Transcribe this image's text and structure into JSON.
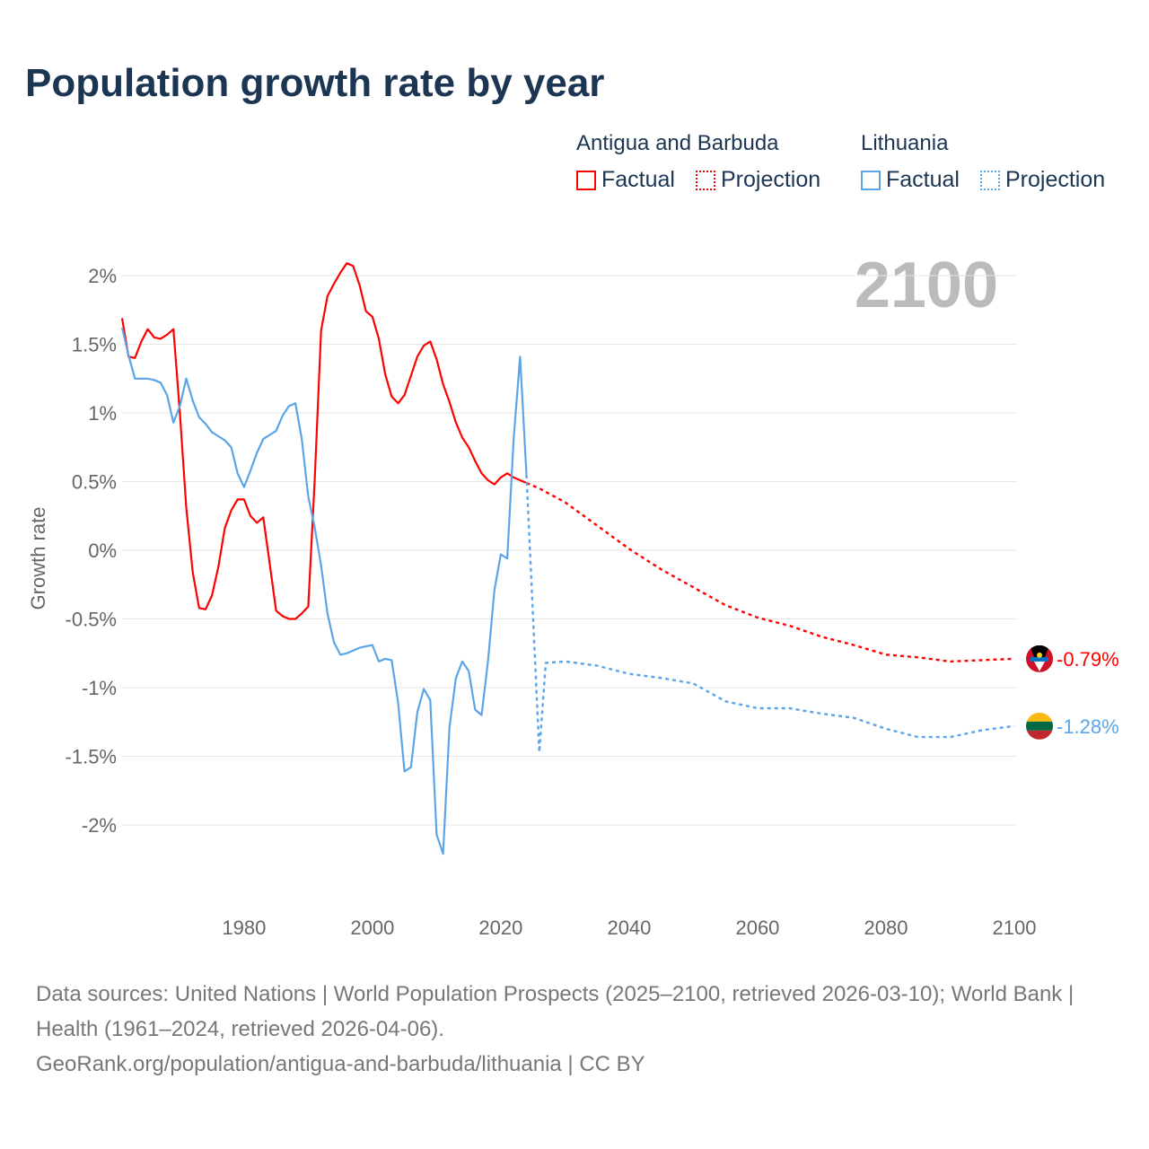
{
  "title": "Population growth rate by year",
  "legend": {
    "groups": [
      {
        "name": "Antigua and Barbuda",
        "color": "#ff0000",
        "factual": "Factual",
        "projection": "Projection"
      },
      {
        "name": "Lithuania",
        "color": "#5ba4e8",
        "factual": "Factual",
        "projection": "Projection"
      }
    ]
  },
  "year_label": "2100",
  "footer": {
    "sources": "Data sources: United Nations | World Population Prospects (2025–2100, retrieved 2026-03-10); World Bank | Health (1961–2024, retrieved 2026-04-06).",
    "credit": "GeoRank.org/population/antigua-and-barbuda/lithuania | CC BY"
  },
  "chart_data": {
    "type": "line",
    "title": "Population growth rate by year",
    "xlabel": "",
    "ylabel": "Growth rate",
    "xlim": [
      1961,
      2100
    ],
    "ylim": [
      -2.5,
      2.2
    ],
    "x_ticks": [
      1980,
      2000,
      2020,
      2040,
      2060,
      2080,
      2100
    ],
    "y_ticks": [
      2,
      1.5,
      1,
      0.5,
      0,
      -0.5,
      -1,
      -1.5,
      -2
    ],
    "y_tick_labels": [
      "2%",
      "1.5%",
      "1%",
      "0.5%",
      "0%",
      "-0.5%",
      "-1%",
      "-1.5%",
      "-2%"
    ],
    "series": [
      {
        "name": "Antigua and Barbuda",
        "color": "#ff0000",
        "end_label": "-0.79%",
        "factual_start": 1961,
        "factual": [
          1.69,
          1.41,
          1.4,
          1.52,
          1.61,
          1.55,
          1.54,
          1.57,
          1.61,
          1.0,
          0.31,
          -0.16,
          -0.42,
          -0.43,
          -0.33,
          -0.12,
          0.16,
          0.29,
          0.37,
          0.37,
          0.25,
          0.2,
          0.24,
          -0.1,
          -0.44,
          -0.48,
          -0.5,
          -0.5,
          -0.46,
          -0.41,
          0.5,
          1.6,
          1.85,
          1.94,
          2.02,
          2.09,
          2.07,
          1.93,
          1.74,
          1.7,
          1.54,
          1.28,
          1.12,
          1.07,
          1.13,
          1.27,
          1.41,
          1.49,
          1.52,
          1.39,
          1.21,
          1.08,
          0.93,
          0.82,
          0.75,
          0.65,
          0.56,
          0.51,
          0.48,
          0.53,
          0.56,
          0.53,
          0.51,
          0.49
        ],
        "projection": [
          [
            2024,
            0.49
          ],
          [
            2026,
            0.45
          ],
          [
            2030,
            0.35
          ],
          [
            2035,
            0.18
          ],
          [
            2040,
            0.01
          ],
          [
            2045,
            -0.14
          ],
          [
            2050,
            -0.27
          ],
          [
            2055,
            -0.4
          ],
          [
            2060,
            -0.49
          ],
          [
            2065,
            -0.55
          ],
          [
            2070,
            -0.63
          ],
          [
            2075,
            -0.69
          ],
          [
            2080,
            -0.76
          ],
          [
            2085,
            -0.78
          ],
          [
            2090,
            -0.81
          ],
          [
            2095,
            -0.8
          ],
          [
            2100,
            -0.79
          ]
        ]
      },
      {
        "name": "Lithuania",
        "color": "#5ba4e8",
        "end_label": "-1.28%",
        "factual_start": 1961,
        "factual": [
          1.62,
          1.42,
          1.25,
          1.25,
          1.25,
          1.24,
          1.22,
          1.13,
          0.93,
          1.05,
          1.25,
          1.09,
          0.97,
          0.92,
          0.86,
          0.83,
          0.8,
          0.75,
          0.56,
          0.46,
          0.58,
          0.71,
          0.81,
          0.84,
          0.87,
          0.98,
          1.05,
          1.07,
          0.81,
          0.39,
          0.17,
          -0.11,
          -0.46,
          -0.67,
          -0.76,
          -0.75,
          -0.73,
          -0.71,
          -0.7,
          -0.69,
          -0.81,
          -0.79,
          -0.8,
          -1.11,
          -1.61,
          -1.58,
          -1.18,
          -1.01,
          -1.09,
          -2.07,
          -2.21,
          -1.29,
          -0.93,
          -0.81,
          -0.88,
          -1.16,
          -1.2,
          -0.81,
          -0.29,
          -0.03,
          -0.06,
          0.81,
          1.41,
          0.55
        ],
        "projection": [
          [
            2024,
            0.55
          ],
          [
            2026,
            -1.47
          ],
          [
            2027,
            -0.82
          ],
          [
            2030,
            -0.81
          ],
          [
            2035,
            -0.84
          ],
          [
            2040,
            -0.9
          ],
          [
            2045,
            -0.93
          ],
          [
            2050,
            -0.97
          ],
          [
            2055,
            -1.1
          ],
          [
            2060,
            -1.15
          ],
          [
            2065,
            -1.15
          ],
          [
            2070,
            -1.19
          ],
          [
            2075,
            -1.22
          ],
          [
            2080,
            -1.3
          ],
          [
            2085,
            -1.36
          ],
          [
            2090,
            -1.36
          ],
          [
            2095,
            -1.31
          ],
          [
            2100,
            -1.28
          ]
        ]
      }
    ]
  }
}
